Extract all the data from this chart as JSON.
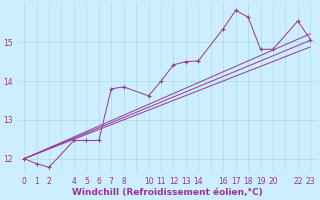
{
  "xlabel": "Windchill (Refroidissement éolien,°C)",
  "bg_color": "#cceeff",
  "line_color": "#993399",
  "xlim": [
    -0.5,
    23.5
  ],
  "ylim": [
    11.65,
    16.0
  ],
  "yticks": [
    12,
    13,
    14,
    15
  ],
  "xtick_positions": [
    0,
    1,
    2,
    3,
    4,
    5,
    6,
    7,
    8,
    9,
    10,
    11,
    12,
    13,
    14,
    15,
    16,
    17,
    18,
    19,
    20,
    21,
    22,
    23
  ],
  "xtick_labels": [
    "0",
    "1",
    "2",
    "",
    "4",
    "5",
    "6",
    "7",
    "8",
    "",
    "10",
    "11",
    "12",
    "13",
    "14",
    "",
    "16",
    "17",
    "18",
    "19",
    "20",
    "",
    "22",
    "23"
  ],
  "series_main_x": [
    0,
    1,
    2,
    4,
    5,
    6,
    7,
    8,
    10,
    11,
    12,
    13,
    14,
    16,
    17,
    18,
    19,
    20,
    22,
    23
  ],
  "series_main_y": [
    12.0,
    11.87,
    11.78,
    12.47,
    12.47,
    12.47,
    13.8,
    13.85,
    13.62,
    14.0,
    14.42,
    14.5,
    14.52,
    15.35,
    15.82,
    15.65,
    14.82,
    14.82,
    15.55,
    15.07
  ],
  "reg_lines": [
    {
      "x": [
        0,
        23
      ],
      "y": [
        12.0,
        15.22
      ]
    },
    {
      "x": [
        0,
        23
      ],
      "y": [
        12.0,
        15.05
      ]
    },
    {
      "x": [
        0,
        23
      ],
      "y": [
        12.0,
        14.88
      ]
    }
  ],
  "grid_color": "#aadddd",
  "xlabel_fontsize": 6.5,
  "tick_fontsize": 5.5,
  "tick_color": "#993399",
  "xlabel_color": "#993399"
}
